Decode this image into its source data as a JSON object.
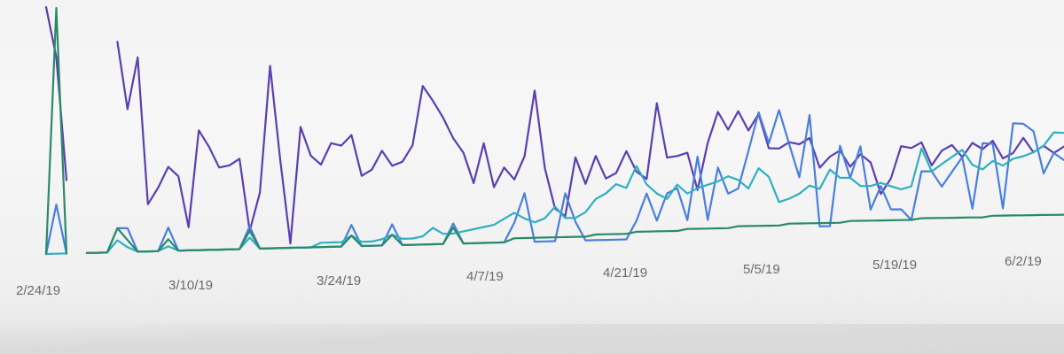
{
  "chart_data": {
    "type": "line",
    "title": "",
    "xlabel": "",
    "ylabel": "",
    "x_tick_labels": [
      "2/24/19",
      "3/10/19",
      "3/24/19",
      "4/7/19",
      "4/21/19",
      "5/5/19",
      "5/19/19",
      "6/2/19"
    ],
    "x_start": "2/22/19",
    "grid": false,
    "legend": "none",
    "ylim": [
      0,
      100
    ],
    "series": [
      {
        "color": "#5b3fb0",
        "values": [
          100,
          80,
          30,
          null,
          null,
          null,
          null,
          88,
          60,
          82,
          20,
          27,
          36,
          32,
          10,
          52,
          45,
          36,
          37,
          40,
          8,
          25,
          82,
          40,
          2,
          55,
          42,
          38,
          48,
          47,
          52,
          33,
          36,
          45,
          38,
          40,
          48,
          77,
          70,
          62,
          52,
          45,
          30,
          50,
          28,
          38,
          32,
          44,
          78,
          38,
          17,
          13,
          44,
          30,
          45,
          33,
          36,
          48,
          37,
          33,
          75,
          45,
          46,
          48,
          27,
          54,
          72,
          62,
          73,
          62,
          72,
          52,
          52,
          56,
          55,
          59,
          41,
          48,
          52,
          42,
          50,
          45,
          25,
          35,
          56,
          55,
          59,
          44,
          54,
          58,
          50,
          60,
          56,
          62,
          50,
          54,
          65,
          55,
          60,
          55,
          60
        ]
      },
      {
        "color": "#4a7fdc",
        "values": [
          0,
          20,
          0,
          null,
          0,
          0,
          0,
          10,
          10,
          0,
          0,
          0,
          10,
          0,
          0,
          0,
          0,
          0,
          0,
          0,
          10,
          0,
          0,
          0,
          0,
          0,
          0,
          0,
          0,
          0,
          10,
          0,
          0,
          0,
          10,
          0,
          0,
          0,
          0,
          0,
          10,
          0,
          0,
          0,
          0,
          0,
          10,
          25,
          0,
          0,
          0,
          25,
          10,
          0,
          0,
          0,
          0,
          0,
          10,
          25,
          10,
          25,
          28,
          10,
          46,
          10,
          40,
          25,
          28,
          50,
          73,
          55,
          75,
          55,
          35,
          73,
          5,
          5,
          55,
          35,
          55,
          15,
          30,
          15,
          15,
          8,
          40,
          40,
          30,
          40,
          50,
          15,
          60,
          60,
          15,
          75,
          75,
          70,
          40,
          55,
          50
        ]
      },
      {
        "color": "#2fb0c0",
        "values": [
          0,
          0,
          0,
          null,
          0,
          0,
          0,
          5,
          2,
          0,
          0,
          0,
          2,
          0,
          0,
          0,
          0,
          0,
          0,
          0,
          5,
          0,
          0,
          0,
          0,
          0,
          0,
          2,
          2,
          2,
          5,
          2,
          2,
          3,
          5,
          3,
          3,
          4,
          8,
          5,
          5,
          6,
          7,
          8,
          9,
          12,
          15,
          12,
          10,
          12,
          18,
          12,
          12,
          15,
          22,
          25,
          30,
          28,
          40,
          30,
          25,
          22,
          30,
          25,
          28,
          30,
          32,
          35,
          33,
          28,
          40,
          35,
          20,
          22,
          25,
          30,
          28,
          40,
          35,
          35,
          30,
          30,
          32,
          30,
          28,
          30,
          55,
          40,
          45,
          50,
          55,
          45,
          42,
          48,
          45,
          50,
          52,
          55,
          60,
          70,
          70
        ]
      },
      {
        "color": "#2a8a68",
        "values": [
          0,
          100,
          0,
          null,
          0,
          0,
          0,
          10,
          5,
          0,
          0,
          0,
          5,
          0,
          0,
          0,
          0,
          0,
          0,
          0,
          8,
          0,
          0,
          0,
          0,
          0,
          0,
          0,
          0,
          0,
          5,
          0,
          0,
          0,
          5,
          0,
          0,
          0,
          0,
          0,
          8,
          0,
          0,
          0,
          0,
          0,
          2,
          2,
          2,
          2,
          2,
          2,
          2,
          2,
          3,
          3,
          3,
          3,
          4,
          4,
          4,
          4,
          4,
          5,
          5,
          5,
          5,
          5,
          6,
          6,
          6,
          6,
          6,
          7,
          7,
          7,
          7,
          7,
          7,
          8,
          8,
          8,
          8,
          8,
          8,
          8,
          9,
          9,
          9,
          9,
          9,
          9,
          9,
          10,
          10,
          10,
          10,
          10,
          10,
          10,
          10
        ]
      }
    ]
  }
}
